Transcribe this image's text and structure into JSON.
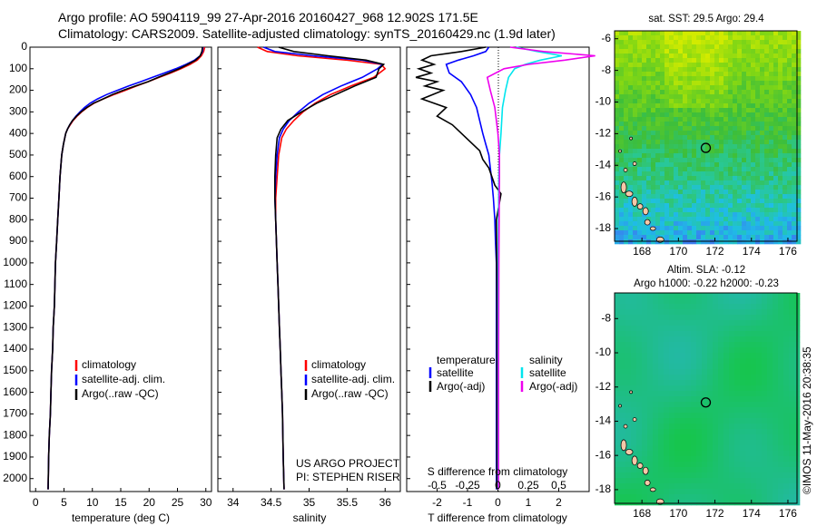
{
  "header": {
    "line1": "Argo profile: AO 5904119_99 27-Apr-2016 20160427_968 12.902S 171.5E",
    "line2": "Climatology: CARS2009. Satellite-adjusted climatology: synTS_20160429.nc (1.9d later)"
  },
  "depth_axis": {
    "ticks": [
      "0",
      "100",
      "200",
      "300",
      "400",
      "500",
      "600",
      "700",
      "800",
      "900",
      "1000",
      "1100",
      "1200",
      "1300",
      "1400",
      "1500",
      "1600",
      "1700",
      "1800",
      "1900",
      "2000"
    ],
    "range": [
      0,
      2060
    ]
  },
  "colors": {
    "climatology": "#ff0000",
    "satellite": "#0000ff",
    "argo": "#000000",
    "cyan": "#00e5ee",
    "magenta": "#ee00ee"
  },
  "chart_data": [
    {
      "type": "line",
      "panel": "temperature",
      "xlabel": "temperature (deg C)",
      "xlim": [
        -1,
        31
      ],
      "xticks": [
        "0",
        "5",
        "10",
        "15",
        "20",
        "25",
        "30"
      ],
      "legend": [
        "climatology",
        "satellite-adj. clim.",
        "Argo(..raw -QC)"
      ],
      "series": [
        {
          "name": "climatology",
          "color": "#ff0000",
          "x": [
            29.8,
            29.6,
            29.2,
            28.5,
            27.2,
            25.6,
            23.8,
            21.8,
            19.8,
            17.8,
            15.8,
            13.8,
            11.9,
            10.3,
            9.1,
            8.1,
            7.3,
            6.6,
            6.1,
            5.6,
            5.3,
            4.9,
            4.6,
            4.3,
            4.1,
            3.9,
            3.7,
            3.5,
            3.4,
            3.3,
            3.1,
            3.0,
            2.8,
            2.7,
            2.6,
            2.4,
            2.3,
            2.2
          ],
          "y": [
            0,
            20,
            40,
            60,
            80,
            100,
            120,
            140,
            160,
            180,
            200,
            220,
            240,
            260,
            280,
            300,
            320,
            340,
            360,
            380,
            400,
            450,
            500,
            600,
            700,
            800,
            900,
            1000,
            1100,
            1200,
            1300,
            1400,
            1500,
            1600,
            1700,
            1800,
            1900,
            2050
          ]
        },
        {
          "name": "satellite-adj. clim.",
          "color": "#0000ff",
          "x": [
            29.5,
            29.4,
            29.0,
            28.0,
            26.5,
            24.7,
            22.7,
            20.6,
            18.5,
            16.4,
            14.4,
            12.5,
            10.9,
            9.6,
            8.6,
            7.8,
            7.1,
            6.5,
            6.0,
            5.6,
            5.3,
            4.9,
            4.6,
            4.3,
            4.1,
            3.9,
            3.7,
            3.5,
            3.4,
            3.3,
            3.1,
            3.0,
            2.8,
            2.7,
            2.6,
            2.4,
            2.3,
            2.2
          ],
          "y": [
            0,
            20,
            40,
            60,
            80,
            100,
            120,
            140,
            160,
            180,
            200,
            220,
            240,
            260,
            280,
            300,
            320,
            340,
            360,
            380,
            400,
            450,
            500,
            600,
            700,
            800,
            900,
            1000,
            1100,
            1200,
            1300,
            1400,
            1500,
            1600,
            1700,
            1800,
            1900,
            2050
          ]
        },
        {
          "name": "Argo(..raw -QC)",
          "color": "#000000",
          "x": [
            29.4,
            29.3,
            29.0,
            28.2,
            26.8,
            25.3,
            23.5,
            21.6,
            19.8,
            17.6,
            15.4,
            13.5,
            11.9,
            10.2,
            9.0,
            8.0,
            7.2,
            6.5,
            6.0,
            5.6,
            5.3,
            4.9,
            4.6,
            4.3,
            4.1,
            3.9,
            3.7,
            3.5,
            3.4,
            3.3,
            3.1,
            3.0,
            2.8,
            2.7,
            2.6,
            2.4,
            2.3,
            2.2
          ],
          "y": [
            0,
            20,
            40,
            60,
            80,
            100,
            120,
            140,
            160,
            180,
            200,
            220,
            240,
            260,
            280,
            300,
            320,
            340,
            360,
            380,
            400,
            450,
            500,
            600,
            700,
            800,
            900,
            1000,
            1100,
            1200,
            1300,
            1400,
            1500,
            1600,
            1700,
            1800,
            1900,
            2050
          ]
        }
      ]
    },
    {
      "type": "line",
      "panel": "salinity",
      "xlabel": "salinity",
      "xlim": [
        33.8,
        36.2
      ],
      "xticks": [
        "34",
        "34.5",
        "35",
        "35.5",
        "36"
      ],
      "legend": [
        "climatology",
        "satellite-adj. clim.",
        "Argo(..raw -QC)"
      ],
      "credit": [
        "US ARGO PROJECT",
        "PI: STEPHEN RISER"
      ],
      "series": [
        {
          "name": "climatology",
          "color": "#ff0000",
          "x": [
            34.32,
            34.45,
            34.85,
            35.5,
            35.95,
            36.0,
            35.85,
            35.55,
            35.28,
            35.08,
            34.92,
            34.8,
            34.7,
            34.64,
            34.6,
            34.58,
            34.56,
            34.56,
            34.57,
            34.58,
            34.59,
            34.6,
            34.61,
            34.62,
            34.63,
            34.64,
            34.65,
            34.66,
            34.67
          ],
          "y": [
            0,
            20,
            40,
            60,
            80,
            100,
            140,
            180,
            220,
            260,
            300,
            340,
            380,
            420,
            500,
            600,
            700,
            800,
            900,
            1000,
            1100,
            1200,
            1300,
            1400,
            1500,
            1600,
            1700,
            1900,
            2050
          ]
        },
        {
          "name": "satellite-adj. clim.",
          "color": "#0000ff",
          "x": [
            34.4,
            34.55,
            35.05,
            35.7,
            35.97,
            35.9,
            35.7,
            35.42,
            35.18,
            35.0,
            34.86,
            34.74,
            34.66,
            34.61,
            34.58,
            34.56,
            34.55,
            34.56,
            34.57,
            34.58,
            34.59,
            34.6,
            34.61,
            34.62,
            34.63,
            34.64,
            34.65,
            34.66,
            34.67
          ],
          "y": [
            0,
            20,
            40,
            60,
            80,
            100,
            140,
            180,
            220,
            260,
            300,
            340,
            380,
            420,
            500,
            600,
            700,
            800,
            900,
            1000,
            1100,
            1200,
            1300,
            1400,
            1500,
            1600,
            1700,
            1900,
            2050
          ]
        },
        {
          "name": "Argo(..raw -QC)",
          "color": "#000000",
          "x": [
            34.6,
            34.8,
            35.25,
            35.75,
            35.98,
            35.92,
            35.88,
            35.6,
            35.35,
            35.1,
            34.9,
            34.72,
            34.63,
            34.58,
            34.56,
            34.55,
            34.55,
            34.56,
            34.57,
            34.58,
            34.59,
            34.6,
            34.61,
            34.62,
            34.63,
            34.64,
            34.65,
            34.66,
            34.67
          ],
          "y": [
            0,
            20,
            40,
            60,
            80,
            100,
            140,
            180,
            220,
            260,
            300,
            340,
            380,
            420,
            500,
            600,
            700,
            800,
            900,
            1000,
            1100,
            1200,
            1300,
            1400,
            1500,
            1600,
            1700,
            1900,
            2050
          ]
        }
      ]
    },
    {
      "type": "line",
      "panel": "difference",
      "xlabel": "T difference from climatology",
      "xlim": [
        -3,
        3
      ],
      "xticks": [
        "-2",
        "-1",
        "0",
        "1",
        "2"
      ],
      "top_label": "S difference from climatology",
      "top_ticks": [
        "-0.5",
        "-0.25",
        "0",
        "0.25",
        "0.5"
      ],
      "legend_temperature": {
        "title": "temperature",
        "items": [
          "satellite",
          "Argo(-adj)"
        ]
      },
      "legend_salinity": {
        "title": "salinity",
        "items": [
          "satellite",
          "Argo(-adj)"
        ]
      },
      "series": [
        {
          "name": "satellite",
          "group": "temperature",
          "color": "#0000ff",
          "x": [
            -0.3,
            -0.4,
            -0.8,
            -1.3,
            -1.7,
            -1.6,
            -1.2,
            -0.9,
            -0.7,
            -0.6,
            -0.5,
            -0.4,
            -0.3,
            -0.25,
            -0.2,
            -0.15,
            -0.1,
            -0.08,
            -0.05,
            -0.05,
            -0.05,
            -0.05
          ],
          "y": [
            0,
            20,
            40,
            60,
            80,
            120,
            160,
            220,
            280,
            340,
            400,
            450,
            500,
            560,
            620,
            700,
            800,
            900,
            1000,
            1200,
            1600,
            2050
          ]
        },
        {
          "name": "Argo(-adj)",
          "group": "temperature",
          "color": "#000000",
          "x": [
            -0.4,
            -1.2,
            -2.2,
            -2.5,
            -2.1,
            -2.6,
            -2.2,
            -2.7,
            -2.0,
            -2.4,
            -1.8,
            -2.5,
            -1.7,
            -2.0,
            -1.5,
            -1.2,
            -0.9,
            -0.6,
            -0.5,
            -0.3,
            -0.2,
            -0.1,
            0.1,
            0.05,
            -0.05,
            -0.03,
            -0.03
          ],
          "y": [
            0,
            20,
            40,
            60,
            80,
            100,
            120,
            140,
            160,
            180,
            200,
            240,
            280,
            320,
            360,
            400,
            440,
            480,
            520,
            560,
            600,
            640,
            680,
            720,
            800,
            1200,
            2050
          ]
        },
        {
          "name": "satellite",
          "group": "salinity",
          "color": "#00e5ee",
          "x": [
            0.6,
            1.3,
            2.1,
            1.4,
            0.9,
            0.55,
            0.35,
            0.25,
            0.15,
            0.1,
            0.05,
            0.03,
            0.02,
            0.01,
            0.01,
            0.01
          ],
          "y": [
            0,
            20,
            40,
            60,
            80,
            100,
            140,
            200,
            280,
            400,
            500,
            600,
            800,
            1000,
            1500,
            2050
          ]
        },
        {
          "name": "Argo(-adj)",
          "group": "salinity",
          "color": "#ee00ee",
          "x": [
            0.4,
            1.5,
            3.2,
            2.2,
            1.0,
            0.2,
            -0.35,
            -0.25,
            -0.1,
            0.0,
            0.05,
            0.05,
            0.04,
            0.03,
            0.02,
            0.02
          ],
          "y": [
            0,
            20,
            40,
            60,
            80,
            100,
            140,
            200,
            280,
            400,
            500,
            600,
            800,
            1000,
            1500,
            2050
          ]
        }
      ]
    },
    {
      "type": "heatmap",
      "panel": "sst-map",
      "title": "sat. SST: 29.5 Argo: 29.4",
      "xlim": [
        166.5,
        176.5
      ],
      "ylim": [
        -18.8,
        -5.5
      ],
      "xticks": [
        "168",
        "170",
        "172",
        "174",
        "176"
      ],
      "yticks": [
        "-6",
        "-8",
        "-10",
        "-12",
        "-14",
        "-16",
        "-18"
      ],
      "marker": {
        "lon": 171.5,
        "lat": -12.9
      }
    },
    {
      "type": "heatmap",
      "panel": "sla-map",
      "title_line1": "Altim. SLA: -0.12",
      "title_line2": "Argo h1000: -0.22 h2000: -0.23",
      "xlim": [
        166.5,
        176.5
      ],
      "ylim": [
        -18.8,
        -6.5
      ],
      "xticks": [
        "168",
        "170",
        "172",
        "174",
        "176"
      ],
      "yticks": [
        "-8",
        "-10",
        "-12",
        "-14",
        "-16",
        "-18"
      ],
      "marker": {
        "lon": 171.5,
        "lat": -12.9
      }
    }
  ],
  "credit_vertical": "©IMOS 11-May-2016 20:38:35"
}
